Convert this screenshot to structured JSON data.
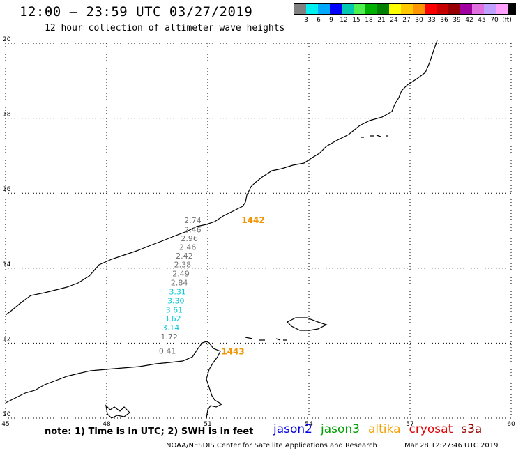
{
  "header": {
    "title": "12:00 — 23:59 UTC 03/27/2019",
    "subtitle": "12 hour collection of altimeter wave heights"
  },
  "legend": {
    "colors": [
      "#808080",
      "#00f0f0",
      "#00a8ff",
      "#0000ff",
      "#00c8b0",
      "#50f050",
      "#00b000",
      "#008000",
      "#ffff00",
      "#ffc800",
      "#ff9600",
      "#ff0000",
      "#c80000",
      "#960000",
      "#a000a0",
      "#e070e0",
      "#c0a0ff",
      "#ffa0ff",
      "#000000"
    ],
    "labels": [
      "3",
      "6",
      "9",
      "12",
      "15",
      "18",
      "21",
      "24",
      "27",
      "30",
      "33",
      "36",
      "39",
      "42",
      "45",
      "70",
      "(ft)"
    ]
  },
  "map": {
    "lon_ticks": [
      "45",
      "48",
      "51",
      "54",
      "57",
      "60"
    ],
    "lat_ticks": [
      "20",
      "18",
      "16",
      "14",
      "12",
      "10"
    ],
    "lon_range": [
      45,
      60
    ],
    "lat_range": [
      10,
      20
    ],
    "grid": "dotted",
    "pass_times": [
      {
        "text": "1442",
        "color": "#f29400",
        "lon": 52.0,
        "lat": 15.2
      },
      {
        "text": "1443",
        "color": "#f29400",
        "lon": 51.4,
        "lat": 11.7
      }
    ],
    "measurements": [
      {
        "text": "2.74",
        "color": "#707070",
        "lon": 50.3,
        "lat": 15.2
      },
      {
        "text": "2.46",
        "color": "#707070",
        "lon": 50.3,
        "lat": 14.95
      },
      {
        "text": "2.96",
        "color": "#707070",
        "lon": 50.2,
        "lat": 14.72
      },
      {
        "text": "2.46",
        "color": "#707070",
        "lon": 50.15,
        "lat": 14.49
      },
      {
        "text": "2.42",
        "color": "#707070",
        "lon": 50.05,
        "lat": 14.26
      },
      {
        "text": "2.38",
        "color": "#707070",
        "lon": 50.0,
        "lat": 14.02
      },
      {
        "text": "2.49",
        "color": "#707070",
        "lon": 49.95,
        "lat": 13.78
      },
      {
        "text": "2.84",
        "color": "#707070",
        "lon": 49.9,
        "lat": 13.54
      },
      {
        "text": "3.31",
        "color": "#00c8d8",
        "lon": 49.85,
        "lat": 13.3
      },
      {
        "text": "3.30",
        "color": "#00c8d8",
        "lon": 49.8,
        "lat": 13.06
      },
      {
        "text": "3.61",
        "color": "#00c8d8",
        "lon": 49.75,
        "lat": 12.82
      },
      {
        "text": "3.62",
        "color": "#00c8d8",
        "lon": 49.7,
        "lat": 12.58
      },
      {
        "text": "3.14",
        "color": "#00c8d8",
        "lon": 49.65,
        "lat": 12.34
      },
      {
        "text": "1.72",
        "color": "#707070",
        "lon": 49.6,
        "lat": 12.1
      },
      {
        "text": "0.41",
        "color": "#707070",
        "lon": 49.55,
        "lat": 11.72
      }
    ]
  },
  "note": "note: 1) Time is in UTC; 2) SWH is in feet",
  "satellites": [
    {
      "name": "jason2",
      "color": "#0000e0"
    },
    {
      "name": "jason3",
      "color": "#00a000"
    },
    {
      "name": "altika",
      "color": "#f5a000"
    },
    {
      "name": "cryosat",
      "color": "#e00000"
    },
    {
      "name": "s3a",
      "color": "#900000"
    }
  ],
  "footer": {
    "left": "NOAA/NESDIS Center for Satellite Applications and Research",
    "right": "Mar 28 12:27:46 UTC 2019"
  }
}
